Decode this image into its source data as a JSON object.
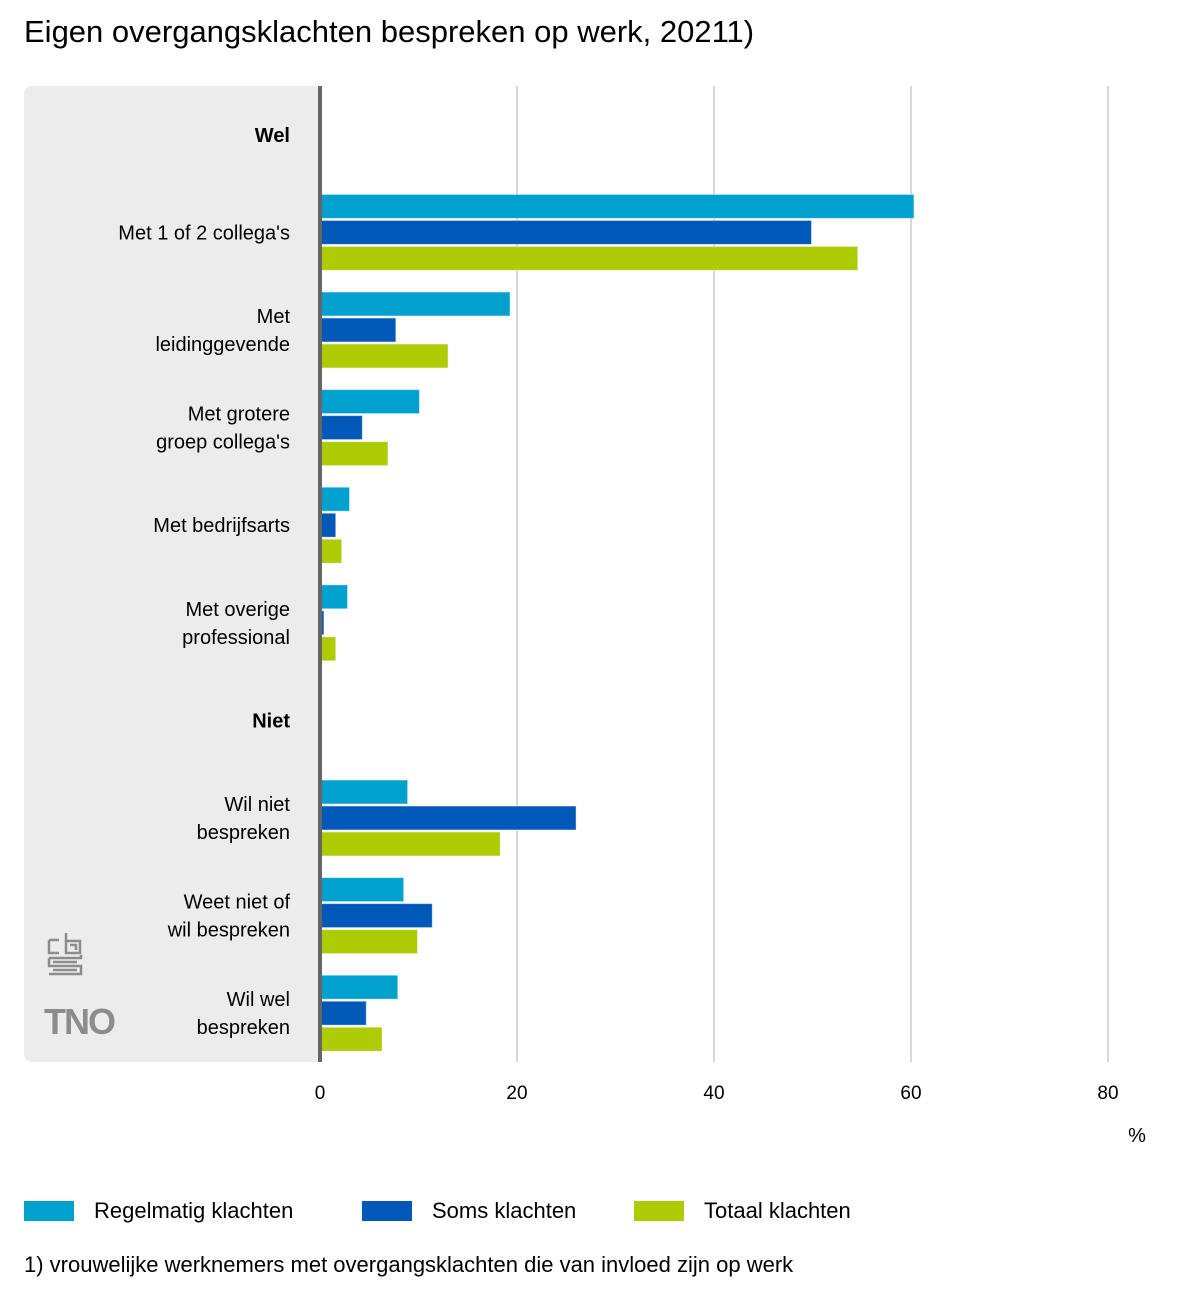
{
  "chart_data": {
    "type": "bar",
    "orientation": "horizontal",
    "title": "Eigen overgangsklachten bespreken op werk, 20211)",
    "xlabel": "%",
    "ylabel": "",
    "xlim": [
      0,
      80
    ],
    "xticks": [
      0,
      20,
      40,
      60,
      80
    ],
    "grid": true,
    "legend_position": "bottom",
    "groups": [
      {
        "heading": "Wel",
        "categories": [
          "Met 1 of 2 collega's",
          "Met leidinggevende",
          "Met grotere groep collega's",
          "Met bedrijfsarts",
          "Met overige professional"
        ]
      },
      {
        "heading": "Niet",
        "categories": [
          "Wil niet bespreken",
          "Weet niet of wil bespreken",
          "Wil wel bespreken"
        ]
      }
    ],
    "categories": [
      "Met 1 of 2 collega's",
      "Met leidinggevende",
      "Met grotere groep collega's",
      "Met bedrijfsarts",
      "Met overige professional",
      "Wil niet bespreken",
      "Weet niet of wil bespreken",
      "Wil wel bespreken"
    ],
    "category_label_lines": [
      [
        "Met 1 of 2 collega's"
      ],
      [
        "Met",
        "leidinggevende"
      ],
      [
        "Met grotere",
        "groep collega's"
      ],
      [
        "Met bedrijfsarts"
      ],
      [
        "Met overige",
        "professional"
      ],
      [
        "Wil niet",
        "bespreken"
      ],
      [
        "Weet niet of",
        "wil bespreken"
      ],
      [
        "Wil wel",
        "bespreken"
      ]
    ],
    "series": [
      {
        "name": "Regelmatig klachten",
        "color": "#00a1cd",
        "values": [
          60.3,
          19.3,
          10.1,
          3.0,
          2.8,
          8.9,
          8.5,
          7.9
        ]
      },
      {
        "name": "Soms klachten",
        "color": "#0058b8",
        "values": [
          49.9,
          7.7,
          4.3,
          1.6,
          0.4,
          26.0,
          11.4,
          4.7
        ]
      },
      {
        "name": "Totaal klachten",
        "color": "#afcb05",
        "values": [
          54.6,
          13.0,
          6.9,
          2.2,
          1.6,
          18.3,
          9.9,
          6.3
        ]
      }
    ],
    "footnote": "1) vrouwelijke werknemers met overgangsklachten die van invloed zijn op werk"
  },
  "logos": [
    "cbs-logo",
    "TNO"
  ]
}
